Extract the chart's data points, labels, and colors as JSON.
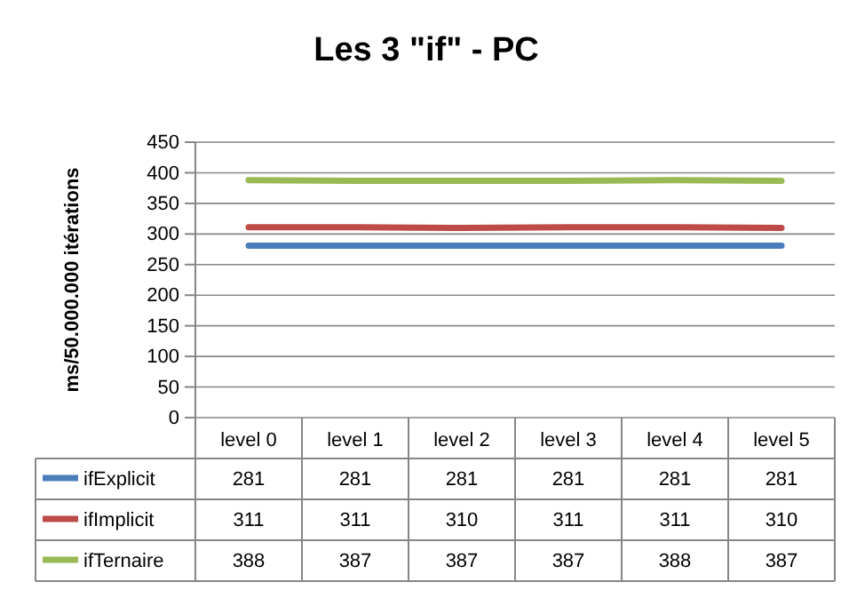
{
  "chart_data": {
    "type": "line",
    "title": "Les 3 \"if\" - PC",
    "ylabel": "ms/50.000.000  itérations",
    "categories": [
      "level 0",
      "level 1",
      "level 2",
      "level 3",
      "level 4",
      "level 5"
    ],
    "series": [
      {
        "name": "ifExplicit",
        "color": "#4a7ebb",
        "values": [
          281,
          281,
          281,
          281,
          281,
          281
        ]
      },
      {
        "name": "ifImplicit",
        "color": "#be4b48",
        "values": [
          311,
          311,
          310,
          311,
          311,
          310
        ]
      },
      {
        "name": "ifTernaire",
        "color": "#98b954",
        "values": [
          388,
          387,
          387,
          387,
          388,
          387
        ]
      }
    ],
    "ylim": [
      0,
      450
    ],
    "yticks": [
      0,
      50,
      100,
      150,
      200,
      250,
      300,
      350,
      400,
      450
    ],
    "grid": "y",
    "legend": "bottom",
    "data_labels": true,
    "marker": "none"
  }
}
